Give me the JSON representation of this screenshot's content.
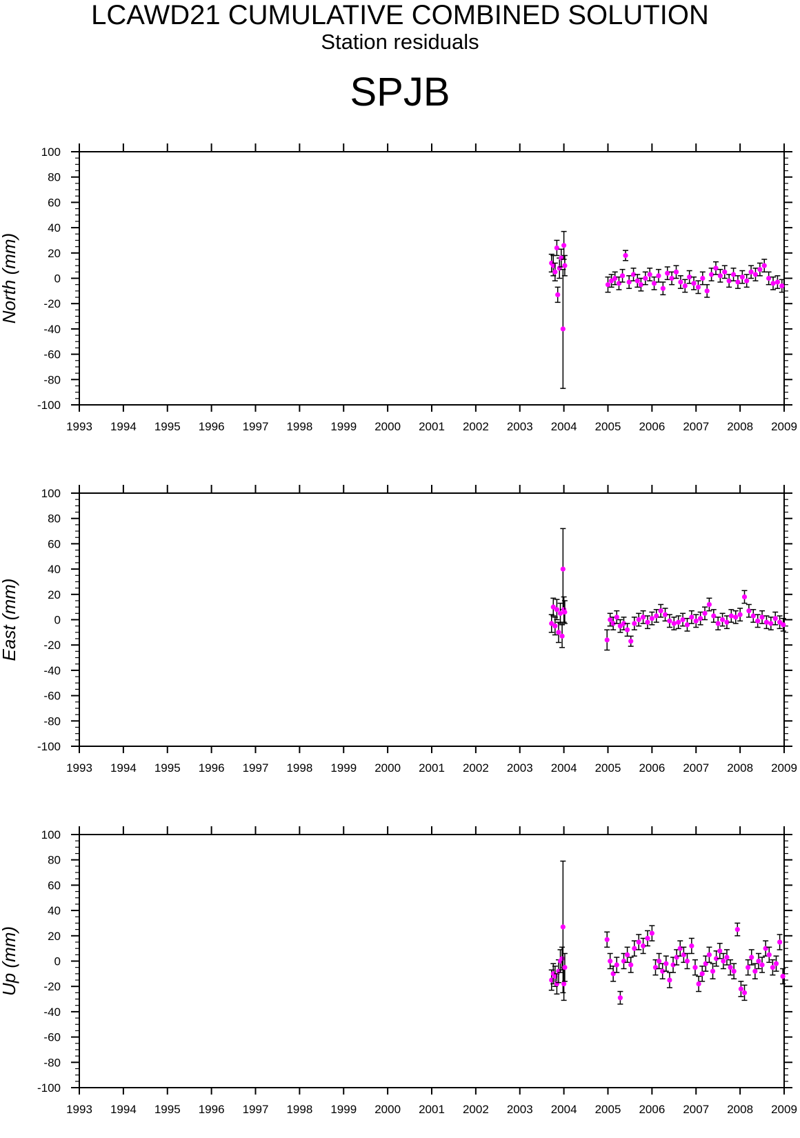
{
  "title": "LCAWD21 CUMULATIVE COMBINED SOLUTION",
  "subtitle": "Station residuals",
  "station": "SPJB",
  "colors": {
    "point": "#ff00ff",
    "errorbar": "#000000",
    "axis": "#000000"
  },
  "chart_data": [
    {
      "type": "scatter",
      "ylabel": "North (mm)",
      "xlim": [
        1993,
        2009
      ],
      "ylim": [
        -100,
        100
      ],
      "x_ticks": [
        "1993",
        "1994",
        "1995",
        "1996",
        "1997",
        "1998",
        "1999",
        "2000",
        "2001",
        "2002",
        "2003",
        "2004",
        "2005",
        "2006",
        "2007",
        "2008",
        "2009"
      ],
      "y_ticks": [
        "100",
        "80",
        "60",
        "40",
        "20",
        "0",
        "-20",
        "-40",
        "-60",
        "-80",
        "-100"
      ],
      "points": [
        [
          2003.72,
          12,
          7
        ],
        [
          2003.76,
          10,
          8
        ],
        [
          2003.8,
          5,
          7
        ],
        [
          2003.84,
          24,
          6
        ],
        [
          2003.86,
          -13,
          6
        ],
        [
          2003.9,
          8,
          8
        ],
        [
          2003.94,
          16,
          7
        ],
        [
          2003.98,
          -40,
          47
        ],
        [
          2004.0,
          26,
          11
        ],
        [
          2004.02,
          10,
          8
        ],
        [
          2005.0,
          -5,
          6
        ],
        [
          2005.08,
          -2,
          5
        ],
        [
          2005.16,
          0,
          5
        ],
        [
          2005.25,
          -4,
          5
        ],
        [
          2005.33,
          2,
          5
        ],
        [
          2005.4,
          18,
          4
        ],
        [
          2005.48,
          -3,
          5
        ],
        [
          2005.58,
          3,
          5
        ],
        [
          2005.67,
          -2,
          5
        ],
        [
          2005.75,
          -5,
          5
        ],
        [
          2005.85,
          0,
          5
        ],
        [
          2005.95,
          3,
          5
        ],
        [
          2006.05,
          -4,
          5
        ],
        [
          2006.15,
          2,
          5
        ],
        [
          2006.25,
          -8,
          5
        ],
        [
          2006.35,
          4,
          5
        ],
        [
          2006.45,
          0,
          5
        ],
        [
          2006.55,
          5,
          5
        ],
        [
          2006.65,
          -3,
          5
        ],
        [
          2006.75,
          -6,
          5
        ],
        [
          2006.85,
          1,
          5
        ],
        [
          2006.95,
          -4,
          5
        ],
        [
          2007.05,
          -7,
          5
        ],
        [
          2007.15,
          0,
          5
        ],
        [
          2007.25,
          -10,
          5
        ],
        [
          2007.35,
          3,
          5
        ],
        [
          2007.45,
          8,
          5
        ],
        [
          2007.55,
          2,
          5
        ],
        [
          2007.65,
          5,
          5
        ],
        [
          2007.75,
          -2,
          5
        ],
        [
          2007.85,
          3,
          5
        ],
        [
          2007.95,
          -3,
          5
        ],
        [
          2008.05,
          1,
          5
        ],
        [
          2008.15,
          -2,
          5
        ],
        [
          2008.25,
          5,
          5
        ],
        [
          2008.35,
          3,
          5
        ],
        [
          2008.45,
          7,
          5
        ],
        [
          2008.55,
          10,
          5
        ],
        [
          2008.65,
          0,
          5
        ],
        [
          2008.75,
          -4,
          5
        ],
        [
          2008.85,
          -3,
          5
        ],
        [
          2008.95,
          -6,
          5
        ]
      ]
    },
    {
      "type": "scatter",
      "ylabel": "East (mm)",
      "xlim": [
        1993,
        2009
      ],
      "ylim": [
        -100,
        100
      ],
      "x_ticks": [
        "1993",
        "1994",
        "1995",
        "1996",
        "1997",
        "1998",
        "1999",
        "2000",
        "2001",
        "2002",
        "2003",
        "2004",
        "2005",
        "2006",
        "2007",
        "2008",
        "2009"
      ],
      "y_ticks": [
        "100",
        "80",
        "60",
        "40",
        "20",
        "0",
        "-20",
        "-40",
        "-60",
        "-80",
        "-100"
      ],
      "points": [
        [
          2003.72,
          -3,
          7
        ],
        [
          2003.76,
          10,
          7
        ],
        [
          2003.8,
          -5,
          7
        ],
        [
          2003.84,
          8,
          8
        ],
        [
          2003.88,
          -10,
          8
        ],
        [
          2003.92,
          5,
          8
        ],
        [
          2003.96,
          -13,
          9
        ],
        [
          2003.98,
          40,
          32
        ],
        [
          2004.0,
          8,
          10
        ],
        [
          2004.02,
          6,
          9
        ],
        [
          2004.98,
          -16,
          8
        ],
        [
          2005.05,
          0,
          5
        ],
        [
          2005.12,
          -3,
          5
        ],
        [
          2005.2,
          2,
          5
        ],
        [
          2005.28,
          -5,
          5
        ],
        [
          2005.36,
          -3,
          5
        ],
        [
          2005.44,
          -8,
          5
        ],
        [
          2005.52,
          -17,
          4
        ],
        [
          2005.6,
          -3,
          5
        ],
        [
          2005.7,
          0,
          5
        ],
        [
          2005.8,
          2,
          5
        ],
        [
          2005.9,
          -2,
          5
        ],
        [
          2006.0,
          1,
          5
        ],
        [
          2006.1,
          3,
          5
        ],
        [
          2006.2,
          7,
          5
        ],
        [
          2006.3,
          4,
          5
        ],
        [
          2006.4,
          -1,
          5
        ],
        [
          2006.5,
          -3,
          5
        ],
        [
          2006.6,
          -2,
          5
        ],
        [
          2006.7,
          0,
          5
        ],
        [
          2006.8,
          -4,
          5
        ],
        [
          2006.9,
          2,
          5
        ],
        [
          2007.0,
          -1,
          5
        ],
        [
          2007.1,
          1,
          5
        ],
        [
          2007.2,
          5,
          5
        ],
        [
          2007.3,
          12,
          5
        ],
        [
          2007.4,
          3,
          5
        ],
        [
          2007.5,
          -3,
          5
        ],
        [
          2007.6,
          0,
          5
        ],
        [
          2007.7,
          -2,
          5
        ],
        [
          2007.8,
          3,
          5
        ],
        [
          2007.9,
          2,
          5
        ],
        [
          2008.0,
          4,
          5
        ],
        [
          2008.1,
          18,
          5
        ],
        [
          2008.2,
          7,
          5
        ],
        [
          2008.3,
          3,
          5
        ],
        [
          2008.4,
          -1,
          5
        ],
        [
          2008.5,
          2,
          5
        ],
        [
          2008.6,
          -2,
          5
        ],
        [
          2008.7,
          -3,
          5
        ],
        [
          2008.8,
          1,
          5
        ],
        [
          2008.9,
          -2,
          5
        ],
        [
          2008.98,
          -4,
          5
        ]
      ]
    },
    {
      "type": "scatter",
      "ylabel": "Up (mm)",
      "xlim": [
        1993,
        2009
      ],
      "ylim": [
        -100,
        100
      ],
      "x_ticks": [
        "1993",
        "1994",
        "1995",
        "1996",
        "1997",
        "1998",
        "1999",
        "2000",
        "2001",
        "2002",
        "2003",
        "2004",
        "2005",
        "2006",
        "2007",
        "2008",
        "2009"
      ],
      "y_ticks": [
        "100",
        "80",
        "60",
        "40",
        "20",
        "0",
        "-20",
        "-40",
        "-60",
        "-80",
        "-100"
      ],
      "points": [
        [
          2003.72,
          -15,
          8
        ],
        [
          2003.76,
          -10,
          8
        ],
        [
          2003.8,
          -12,
          8
        ],
        [
          2003.84,
          -18,
          8
        ],
        [
          2003.88,
          -8,
          9
        ],
        [
          2003.92,
          0,
          9
        ],
        [
          2003.96,
          2,
          9
        ],
        [
          2003.98,
          27,
          52
        ],
        [
          2004.0,
          -18,
          13
        ],
        [
          2004.02,
          -5,
          11
        ],
        [
          2004.98,
          17,
          6
        ],
        [
          2005.05,
          0,
          6
        ],
        [
          2005.12,
          -10,
          6
        ],
        [
          2005.2,
          -3,
          6
        ],
        [
          2005.28,
          -29,
          5
        ],
        [
          2005.36,
          0,
          6
        ],
        [
          2005.44,
          5,
          6
        ],
        [
          2005.52,
          -3,
          6
        ],
        [
          2005.6,
          10,
          6
        ],
        [
          2005.7,
          15,
          6
        ],
        [
          2005.8,
          12,
          6
        ],
        [
          2005.9,
          18,
          6
        ],
        [
          2006.0,
          22,
          6
        ],
        [
          2006.08,
          -5,
          6
        ],
        [
          2006.16,
          0,
          6
        ],
        [
          2006.24,
          -8,
          6
        ],
        [
          2006.32,
          -2,
          6
        ],
        [
          2006.4,
          -15,
          6
        ],
        [
          2006.48,
          -3,
          6
        ],
        [
          2006.56,
          3,
          6
        ],
        [
          2006.64,
          10,
          6
        ],
        [
          2006.72,
          5,
          6
        ],
        [
          2006.8,
          0,
          6
        ],
        [
          2006.9,
          12,
          6
        ],
        [
          2006.98,
          -5,
          6
        ],
        [
          2007.06,
          -18,
          6
        ],
        [
          2007.14,
          -10,
          6
        ],
        [
          2007.22,
          -2,
          6
        ],
        [
          2007.3,
          5,
          6
        ],
        [
          2007.38,
          -8,
          6
        ],
        [
          2007.46,
          2,
          6
        ],
        [
          2007.54,
          8,
          6
        ],
        [
          2007.62,
          0,
          6
        ],
        [
          2007.7,
          3,
          6
        ],
        [
          2007.78,
          -5,
          6
        ],
        [
          2007.86,
          -8,
          6
        ],
        [
          2007.94,
          25,
          5
        ],
        [
          2008.02,
          -22,
          6
        ],
        [
          2008.1,
          -25,
          6
        ],
        [
          2008.18,
          -5,
          6
        ],
        [
          2008.26,
          3,
          6
        ],
        [
          2008.34,
          -8,
          6
        ],
        [
          2008.42,
          0,
          6
        ],
        [
          2008.5,
          -3,
          6
        ],
        [
          2008.58,
          10,
          6
        ],
        [
          2008.66,
          5,
          6
        ],
        [
          2008.74,
          -5,
          6
        ],
        [
          2008.82,
          -2,
          6
        ],
        [
          2008.9,
          15,
          6
        ],
        [
          2008.97,
          -12,
          6
        ]
      ]
    }
  ]
}
